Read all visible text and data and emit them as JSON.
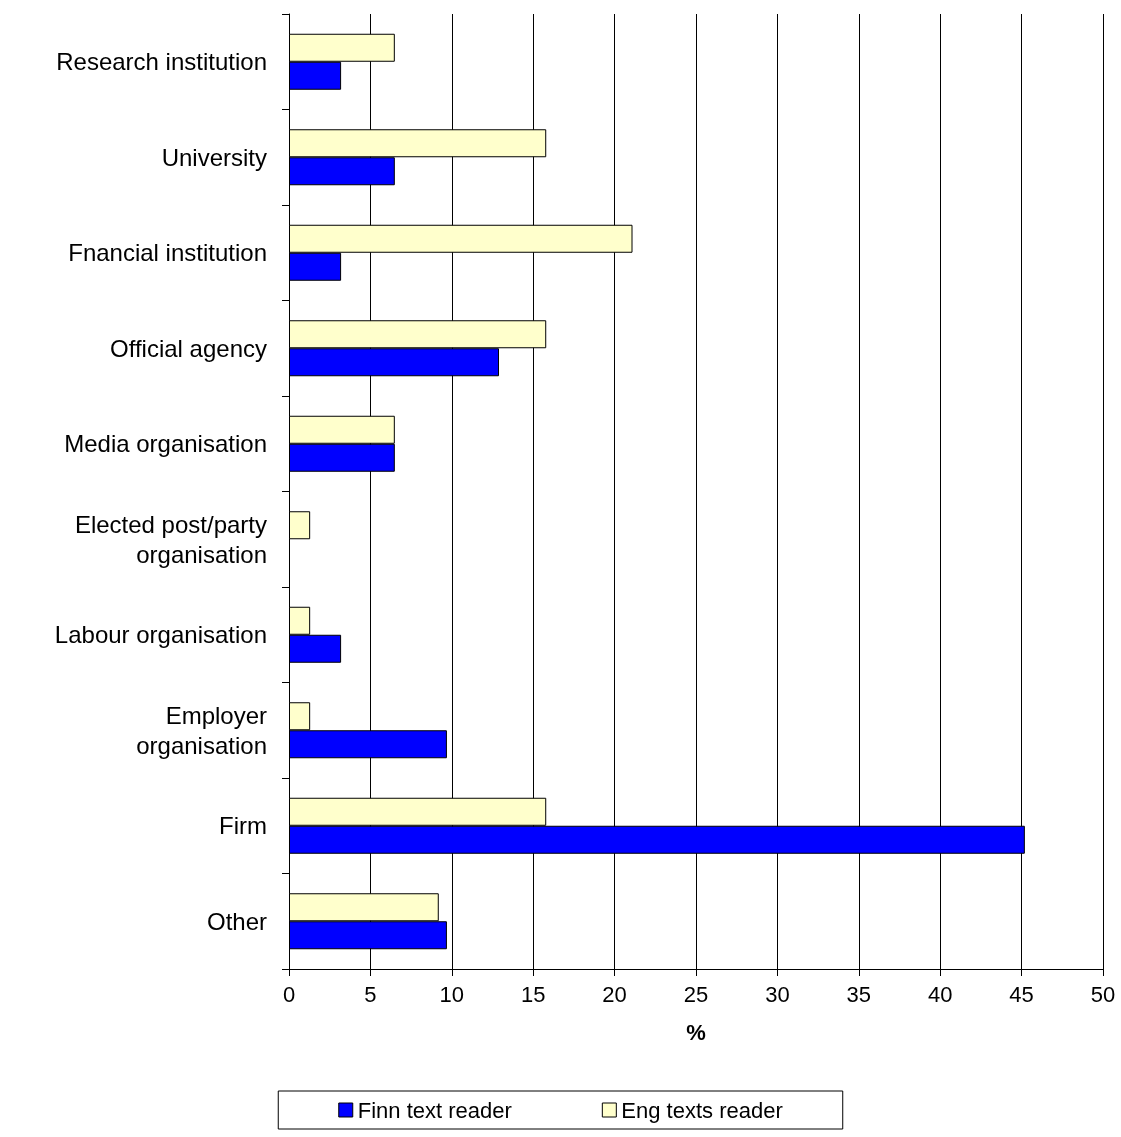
{
  "chart_data": {
    "type": "bar",
    "orientation": "horizontal",
    "categories": [
      "Research institution",
      "University",
      "Fnancial institution",
      "Official agency",
      "Media organisation",
      "Elected post/party\norganisation",
      "Labour organisation",
      "Employer\norganisation",
      "Firm",
      "Other"
    ],
    "series": [
      {
        "name": "Finn text reader",
        "color": "#0000ff",
        "values": [
          3.2,
          6.5,
          3.2,
          12.9,
          6.5,
          null,
          3.2,
          9.7,
          45.2,
          9.7
        ]
      },
      {
        "name": "Eng texts reader",
        "color": "#ffffcc",
        "values": [
          6.5,
          15.8,
          21.1,
          15.8,
          6.5,
          1.3,
          1.3,
          1.3,
          15.8,
          9.2
        ]
      }
    ],
    "xlabel": "%",
    "xlim": [
      0,
      50
    ],
    "xticks": [
      0,
      5,
      10,
      15,
      20,
      25,
      30,
      35,
      40,
      45,
      50
    ],
    "grid": "x",
    "legend": "bottom"
  }
}
